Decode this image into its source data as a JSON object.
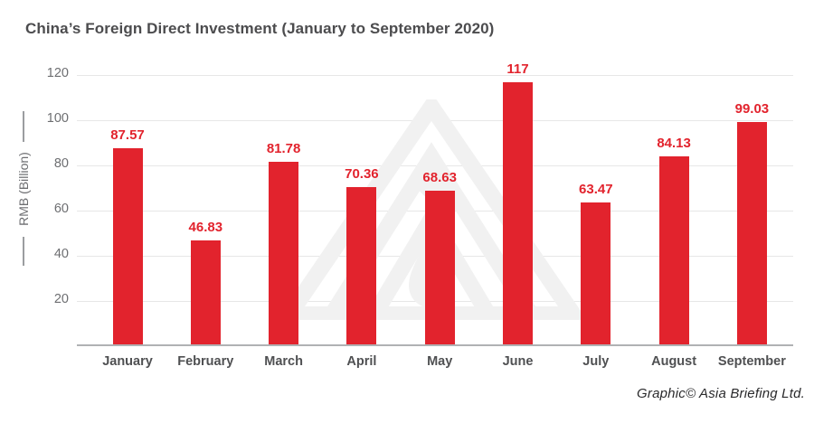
{
  "title": "China’s Foreign Direct Investment (January to September 2020)",
  "credit": "Graphic© Asia Briefing Ltd.",
  "watermark_icon": "asia-briefing-logo",
  "colors": {
    "bar": "#e2232d",
    "value_label": "#e2232d",
    "gridline": "#e7e7e7",
    "axis_line": "#b0b2b4",
    "title_text": "#4c4c4e",
    "tick_text": "#6d6e71",
    "month_text": "#4f5052",
    "watermark": "#f1f1f1"
  },
  "chart_data": {
    "type": "bar",
    "title": "China’s Foreign Direct Investment (January to September 2020)",
    "categories": [
      "January",
      "February",
      "March",
      "April",
      "May",
      "June",
      "July",
      "August",
      "September"
    ],
    "values": [
      87.57,
      46.83,
      81.78,
      70.36,
      68.63,
      117,
      63.47,
      84.13,
      99.03
    ],
    "value_labels": [
      "87.57",
      "46.83",
      "81.78",
      "70.36",
      "68.63",
      "117",
      "63.47",
      "84.13",
      "99.03"
    ],
    "xlabel": "",
    "ylabel": "RMB (Billion)",
    "yticks": [
      20,
      40,
      60,
      80,
      100,
      120
    ],
    "ylim": [
      0,
      125
    ],
    "grid": true,
    "legend": "none",
    "bar_color": "#e2232d"
  }
}
